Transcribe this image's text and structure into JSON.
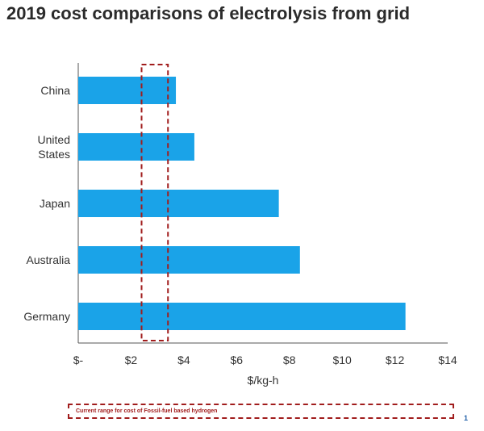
{
  "title": "2019 cost comparisons of electrolysis from grid",
  "legend_note": "Current range for cost of Fossil-fuel based hydrogen",
  "page_number": "1",
  "chart_data": {
    "type": "bar",
    "orientation": "horizontal",
    "categories": [
      [
        "China"
      ],
      [
        "United",
        "States"
      ],
      [
        "Japan"
      ],
      [
        "Australia"
      ],
      [
        "Germany"
      ]
    ],
    "values": [
      3.7,
      4.4,
      7.6,
      8.4,
      12.4
    ],
    "xlabel": "$/kg-h",
    "xlim": [
      0,
      14
    ],
    "xticks": [
      0,
      2,
      4,
      6,
      8,
      10,
      12,
      14
    ],
    "xtick_labels": [
      "$-",
      "$2",
      "$4",
      "$6",
      "$8",
      "$10",
      "$12",
      "$14"
    ],
    "fossil_range": [
      2.4,
      3.4
    ],
    "bar_color": "#1aa3e8",
    "range_color": "#a11d1d",
    "grid": false
  }
}
